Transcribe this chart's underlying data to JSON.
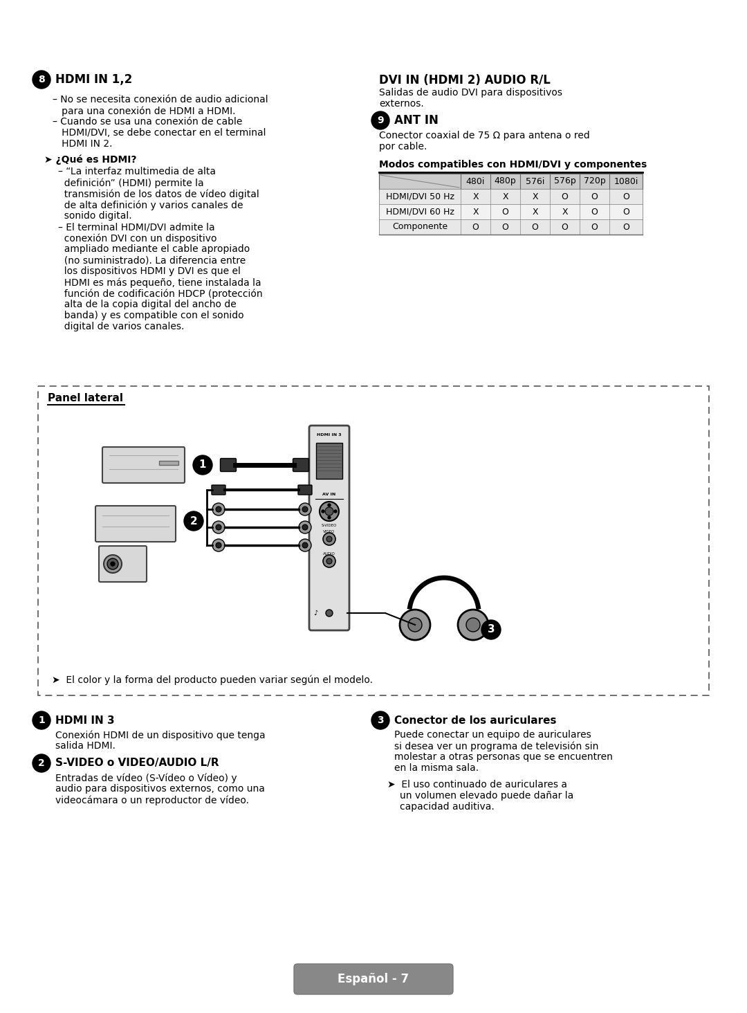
{
  "bg_color": "#ffffff",
  "table": {
    "title": "Modos compatibles con HDMI/DVI y componentes",
    "headers": [
      "",
      "480i",
      "480p",
      "576i",
      "576p",
      "720p",
      "1080i"
    ],
    "rows": [
      [
        "HDMI/DVI 50 Hz",
        "X",
        "X",
        "X",
        "O",
        "O",
        "O"
      ],
      [
        "HDMI/DVI 60 Hz",
        "X",
        "O",
        "X",
        "X",
        "O",
        "O"
      ],
      [
        "Componente",
        "O",
        "O",
        "O",
        "O",
        "O",
        "O"
      ]
    ]
  },
  "panel_box": {
    "title": "Panel lateral",
    "note": "➤  El color y la forma del producto pueden variar según el modelo."
  },
  "bottom_section": {
    "items": [
      {
        "num": "1",
        "title": "HDMI IN 3",
        "desc": "Conexión HDMI de un dispositivo que tenga\nsalida HDMI."
      },
      {
        "num": "2",
        "title": "S-VIDEO o VIDEO/AUDIO L/R",
        "desc": "Entradas de vídeo (S-Vídeo o Vídeo) y\naudio para dispositivos externos, como una\nvideocámara o un reproductor de vídeo."
      },
      {
        "num": "3",
        "title": "Conector de los auriculares",
        "desc": "Puede conectar un equipo de auriculares\nsi desea ver un programa de televisión sin\nmolestar a otras personas que se encuentren\nen la misma sala."
      }
    ],
    "note": "➤  El uso continuado de auriculares a\nun volumen elevado puede dañar la\ncapacidad auditiva."
  },
  "footer": "Español - 7"
}
